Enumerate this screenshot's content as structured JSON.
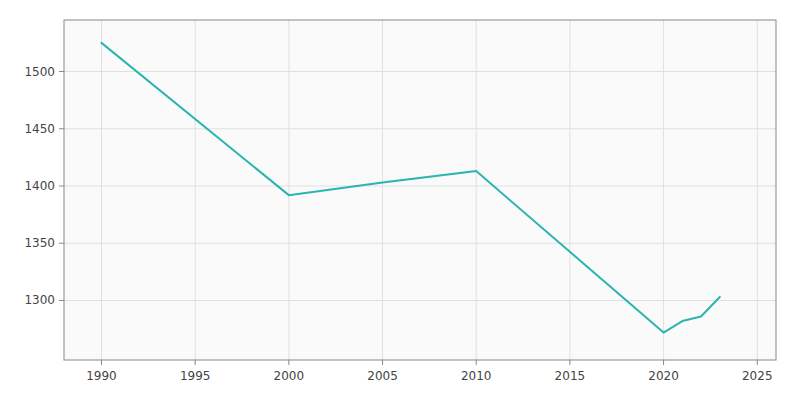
{
  "chart_data": {
    "type": "line",
    "x": [
      1990,
      2000,
      2005,
      2010,
      2020,
      2021,
      2022,
      2023
    ],
    "values": [
      1525,
      1392,
      1403,
      1413,
      1272,
      1282,
      1286,
      1303
    ],
    "color": "#2ab5b0",
    "xlim": [
      1988,
      2026
    ],
    "ylim": [
      1248,
      1545
    ],
    "xticks": [
      1990,
      1995,
      2000,
      2005,
      2010,
      2015,
      2020,
      2025
    ],
    "yticks": [
      1300,
      1350,
      1400,
      1450,
      1500
    ],
    "grid": true
  }
}
